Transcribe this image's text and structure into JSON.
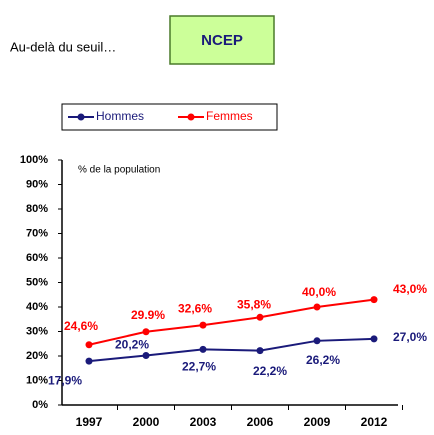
{
  "header": {
    "text": "Au-delà du seuil…",
    "badge": "NCEP"
  },
  "chart_data": {
    "type": "line",
    "y_label": "% de la population",
    "categories": [
      "1997",
      "2000",
      "2003",
      "2006",
      "2009",
      "2012"
    ],
    "series": [
      {
        "name": "Hommes",
        "color": "#1a1a7a",
        "values": [
          17.9,
          20.2,
          22.7,
          22.2,
          26.2,
          27.0
        ],
        "value_labels": [
          "17,9%",
          "20,2%",
          "22,7%",
          "22,2%",
          "26,2%",
          "27,0%"
        ]
      },
      {
        "name": "Femmes",
        "color": "#ff0000",
        "values": [
          24.6,
          29.9,
          32.6,
          35.8,
          40.0,
          43.0
        ],
        "value_labels": [
          "24,6%",
          "29.9%",
          "32,6%",
          "35,8%",
          "40,0%",
          "43,0%"
        ]
      }
    ],
    "ylim": [
      0,
      100
    ],
    "yticks": [
      {
        "value": 0,
        "label": "0%"
      },
      {
        "value": 10,
        "label": "10%"
      },
      {
        "value": 20,
        "label": "20%"
      },
      {
        "value": 30,
        "label": "30%"
      },
      {
        "value": 40,
        "label": "40%"
      },
      {
        "value": 50,
        "label": "50%"
      },
      {
        "value": 60,
        "label": "60%"
      },
      {
        "value": 70,
        "label": "70%"
      },
      {
        "value": 80,
        "label": "80%"
      },
      {
        "value": 90,
        "label": "90%"
      },
      {
        "value": 100,
        "label": "100%"
      }
    ],
    "legend": "top-left"
  }
}
